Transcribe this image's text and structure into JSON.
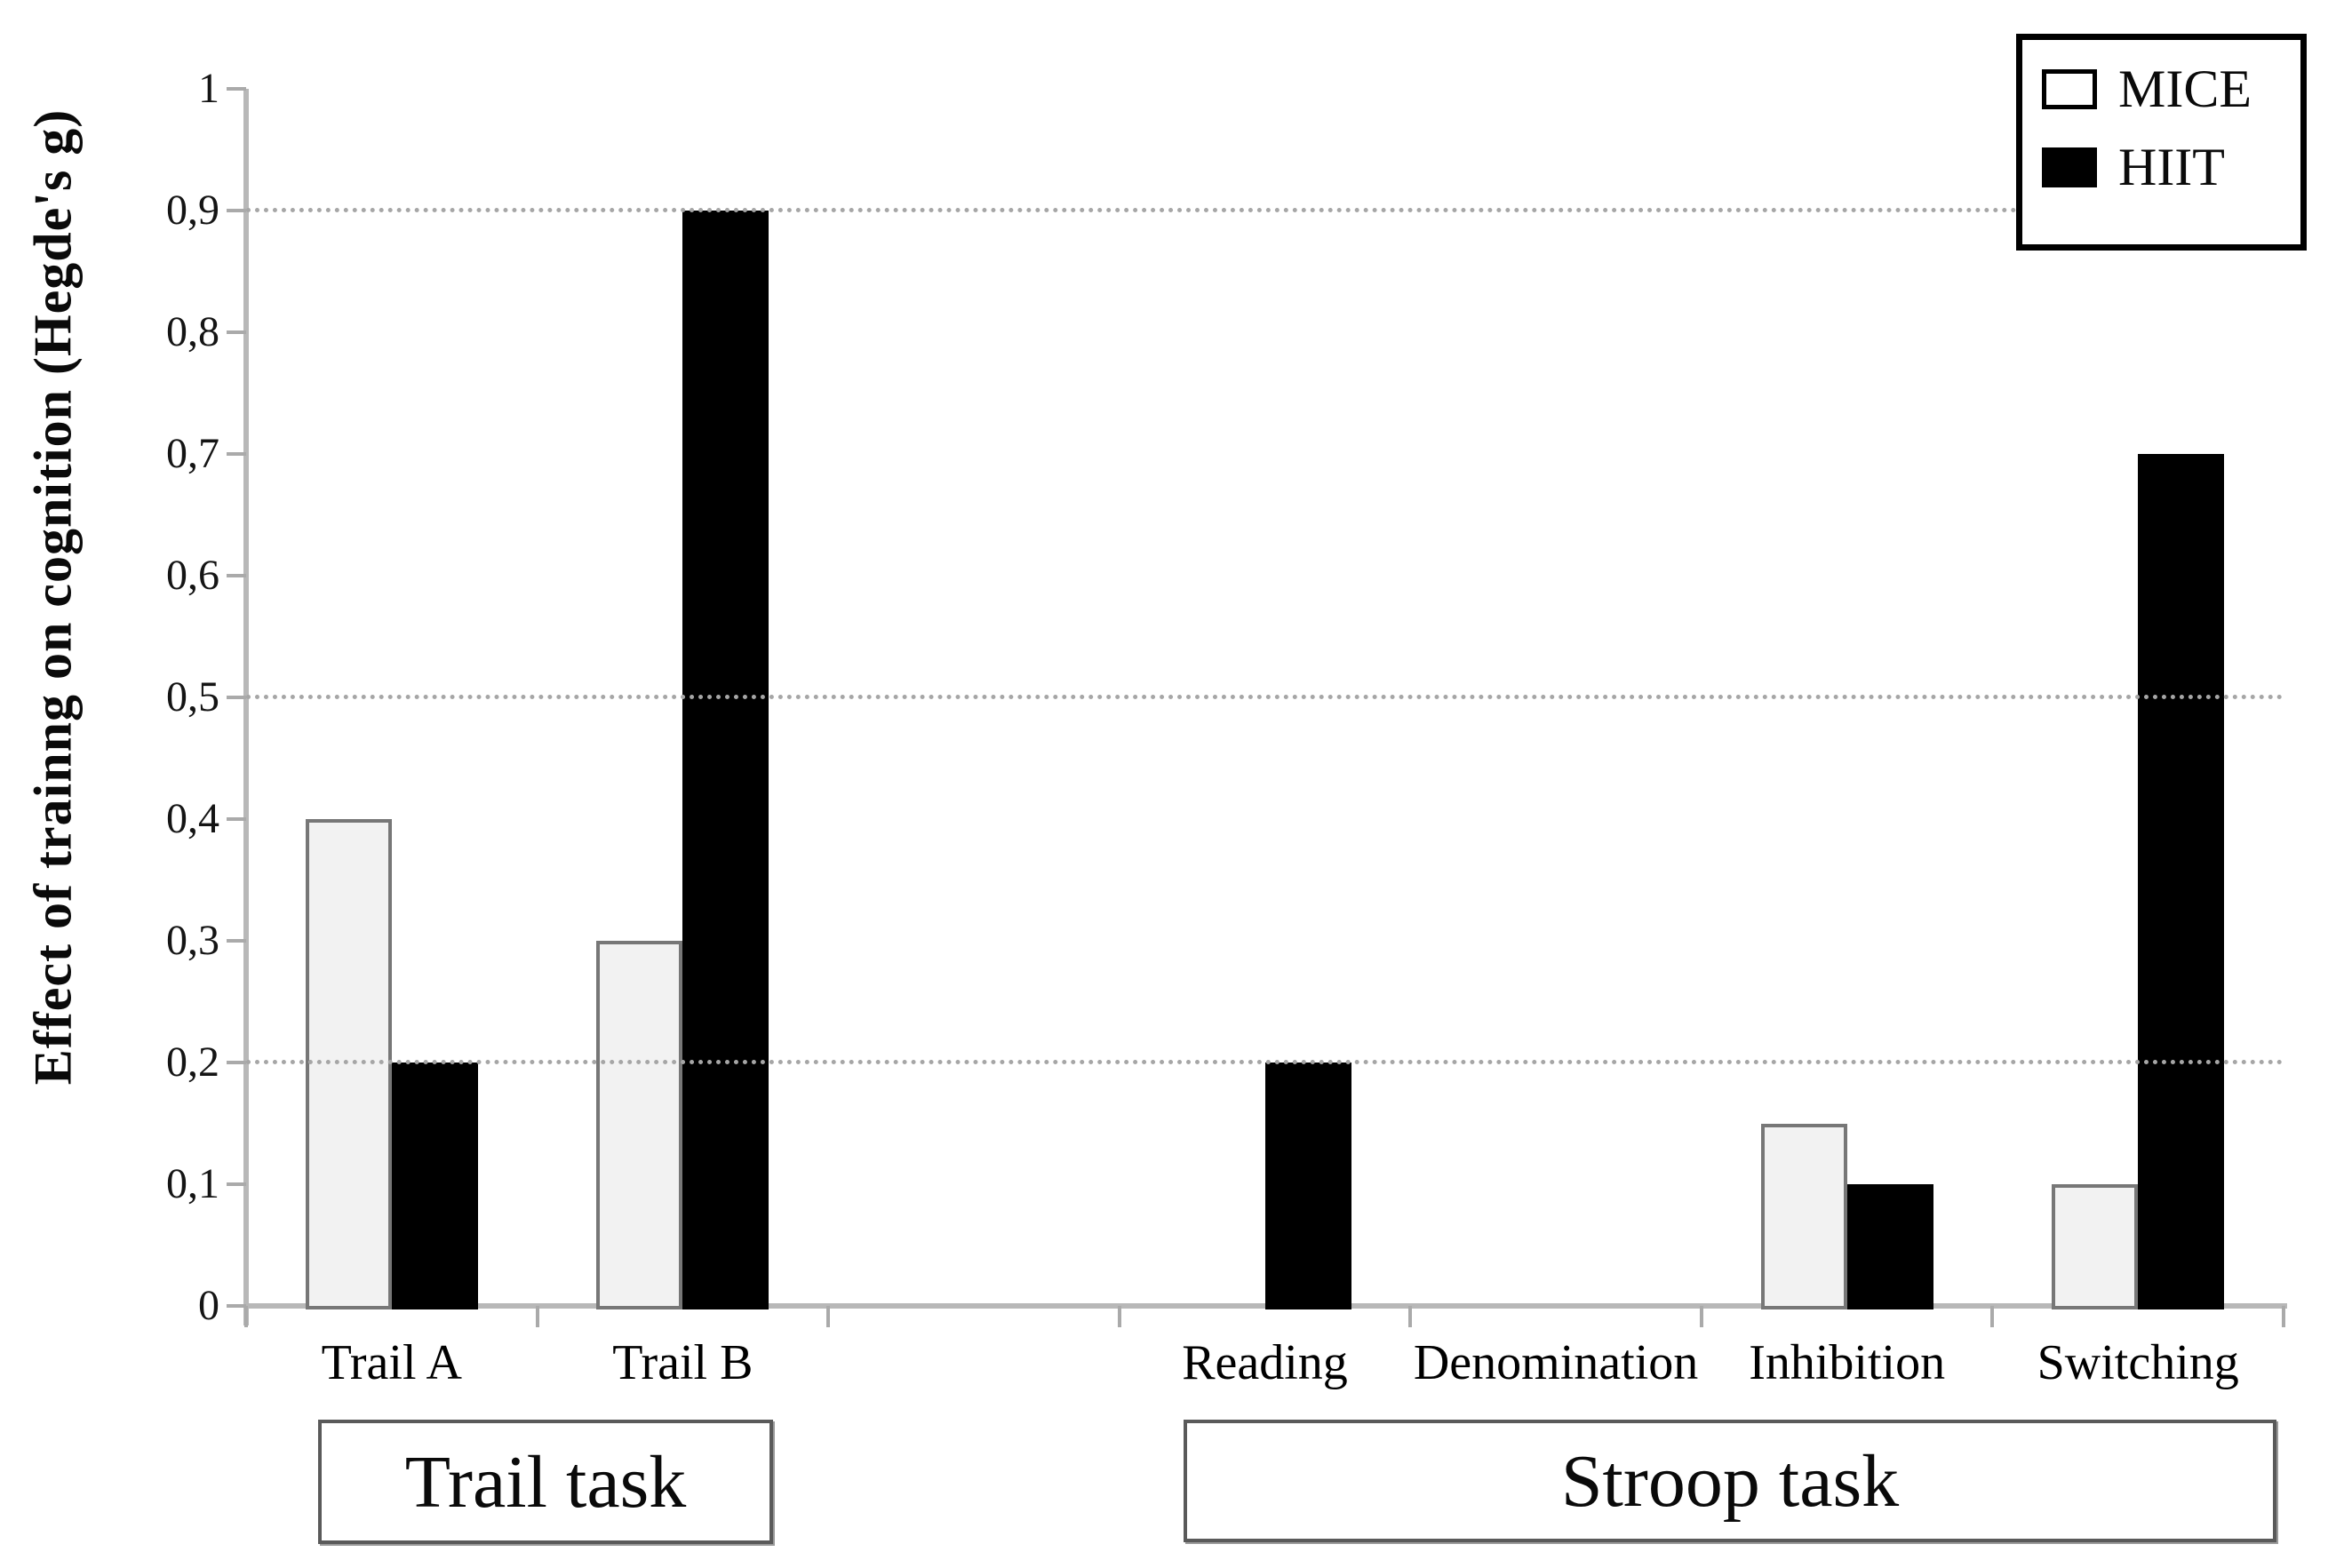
{
  "chart_data": {
    "type": "bar",
    "title": "",
    "xlabel": "",
    "ylabel": "Effect of trainng on cognition (Hegde's g)",
    "ylim": [
      0,
      1
    ],
    "grid": "horizontal dotted gridlines",
    "gridlines_at": [
      0.9,
      0.5,
      0.2
    ],
    "legend_position": "top-right",
    "yticks": [
      {
        "label": "1",
        "value": 1.0
      },
      {
        "label": "0,9",
        "value": 0.9
      },
      {
        "label": "0,8",
        "value": 0.8
      },
      {
        "label": "0,7",
        "value": 0.7
      },
      {
        "label": "0,6",
        "value": 0.6
      },
      {
        "label": "0,5",
        "value": 0.5
      },
      {
        "label": "0,4",
        "value": 0.4
      },
      {
        "label": "0,3",
        "value": 0.3
      },
      {
        "label": "0,2",
        "value": 0.2
      },
      {
        "label": "0,1",
        "value": 0.1
      },
      {
        "label": "0",
        "value": 0.0
      }
    ],
    "categories": [
      "Trail A",
      "Trail B",
      "Reading",
      "Denomination",
      "Inhibition",
      "Switching"
    ],
    "groups": [
      {
        "label": "Trail task",
        "categories": [
          "Trail A",
          "Trail B"
        ]
      },
      {
        "label": "Stroop task",
        "categories": [
          "Reading",
          "Denomination",
          "Inhibition",
          "Switching"
        ]
      }
    ],
    "series": [
      {
        "name": "MICE",
        "fill": "#f2f2f2",
        "border": "#777777",
        "values": [
          0.4,
          0.3,
          null,
          null,
          0.15,
          0.1
        ]
      },
      {
        "name": "HIIT",
        "fill": "#000000",
        "border": "#000000",
        "values": [
          0.2,
          0.9,
          0.2,
          null,
          0.1,
          0.7
        ]
      }
    ],
    "legend": {
      "items": [
        {
          "label": "MICE",
          "fill": "#ffffff",
          "border": "#000000"
        },
        {
          "label": "HIIT",
          "fill": "#000000",
          "border": "#000000"
        }
      ]
    }
  }
}
